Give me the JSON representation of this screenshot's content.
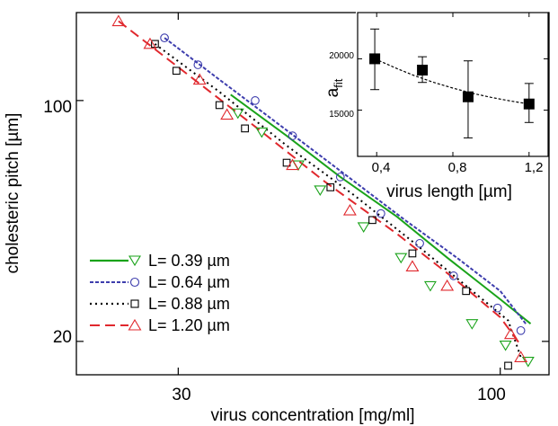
{
  "chart_data": [
    {
      "type": "scatter",
      "xlabel": "virus concentration [mg/ml]",
      "ylabel": "cholesteric pitch [µm]",
      "xscale": "log",
      "yscale": "log",
      "xlim": [
        20.5,
        120
      ],
      "ylim": [
        16,
        180
      ],
      "xticks": [
        30,
        100
      ],
      "yticks": [
        20,
        100
      ],
      "legend_position": "bottom-left",
      "series": [
        {
          "name": "L= 0.39 µm",
          "color": "#1aa31a",
          "marker": "triangle-down",
          "line": "solid",
          "points": [
            [
              37.5,
              92
            ],
            [
              41,
              81
            ],
            [
              47,
              65
            ],
            [
              51,
              55
            ],
            [
              60,
              43
            ],
            [
              69,
              35
            ],
            [
              77,
              29
            ],
            [
              90,
              22.5
            ],
            [
              102,
              19.5
            ],
            [
              111,
              17.5
            ]
          ],
          "fit": [
            [
              36.5,
              104
            ],
            [
              45,
              79
            ],
            [
              55,
              60
            ],
            [
              68,
              46
            ],
            [
              82,
              35
            ],
            [
              100,
              26.5
            ],
            [
              112,
              22.5
            ]
          ]
        },
        {
          "name": "L= 0.64 µm",
          "color": "#3d3dad",
          "marker": "circle",
          "line": "dashed",
          "points": [
            [
              28.5,
              152
            ],
            [
              32.3,
              127
            ],
            [
              40,
              100
            ],
            [
              46,
              79
            ],
            [
              55,
              60
            ],
            [
              64,
              47
            ],
            [
              74,
              38.5
            ],
            [
              84,
              31
            ],
            [
              99,
              25
            ],
            [
              108,
              21.5
            ]
          ],
          "fit": [
            [
              28.5,
              152
            ],
            [
              35,
              115
            ],
            [
              45,
              82
            ],
            [
              56,
              61
            ],
            [
              70,
              45
            ],
            [
              85,
              35
            ],
            [
              100,
              28
            ],
            [
              110,
              22.5
            ]
          ]
        },
        {
          "name": "L= 0.88 µm",
          "color": "#000000",
          "marker": "square",
          "line": "dotted",
          "points": [
            [
              27.5,
              146
            ],
            [
              29.8,
              122
            ],
            [
              35,
              97
            ],
            [
              38.5,
              83
            ],
            [
              45,
              66
            ],
            [
              53,
              56
            ],
            [
              62,
              45
            ],
            [
              72,
              36
            ],
            [
              88,
              28
            ],
            [
              103,
              17
            ]
          ],
          "fit": [
            [
              27.5,
              146
            ],
            [
              35,
              106
            ],
            [
              45,
              74
            ],
            [
              58,
              53
            ],
            [
              72,
              39
            ],
            [
              88,
              29
            ],
            [
              103,
              23
            ],
            [
              108,
              18
            ]
          ]
        },
        {
          "name": "L= 1.20 µm",
          "color": "#e0282d",
          "marker": "triangle-up",
          "line": "longdash",
          "points": [
            [
              24,
              170
            ],
            [
              27,
              146
            ],
            [
              32.5,
              115
            ],
            [
              36,
              91
            ],
            [
              46,
              65
            ],
            [
              57,
              48
            ],
            [
              72,
              33
            ],
            [
              82,
              29
            ],
            [
              104,
              21
            ],
            [
              108,
              18
            ]
          ],
          "fit": [
            [
              24,
              170
            ],
            [
              30,
              125
            ],
            [
              40,
              84
            ],
            [
              52,
              58
            ],
            [
              68,
              41
            ],
            [
              85,
              30
            ],
            [
              100,
              23.5
            ],
            [
              108,
              19.5
            ]
          ]
        }
      ]
    },
    {
      "type": "scatter",
      "xlabel": "virus length [µm]",
      "ylabel_main": "a",
      "ylabel_sub": "fit",
      "xlim": [
        0.3,
        1.3
      ],
      "ylim": [
        10500,
        24500
      ],
      "xticks": [
        "0,4",
        "0,8",
        "1,2"
      ],
      "xtick_values": [
        0.4,
        0.8,
        1.2
      ],
      "yticks": [
        15000,
        20000
      ],
      "points": [
        {
          "x": 0.39,
          "y": 20000,
          "err": [
            17000,
            22900
          ]
        },
        {
          "x": 0.64,
          "y": 18900,
          "err": [
            17700,
            20200
          ]
        },
        {
          "x": 0.88,
          "y": 16300,
          "err": [
            12300,
            19800
          ]
        },
        {
          "x": 1.2,
          "y": 15600,
          "err": [
            13800,
            17600
          ]
        }
      ],
      "fit": [
        [
          0.39,
          20000
        ],
        [
          0.5,
          19100
        ],
        [
          0.6,
          18350
        ],
        [
          0.7,
          17700
        ],
        [
          0.8,
          17150
        ],
        [
          0.9,
          16650
        ],
        [
          1.0,
          16250
        ],
        [
          1.1,
          15900
        ],
        [
          1.2,
          15600
        ]
      ]
    }
  ]
}
